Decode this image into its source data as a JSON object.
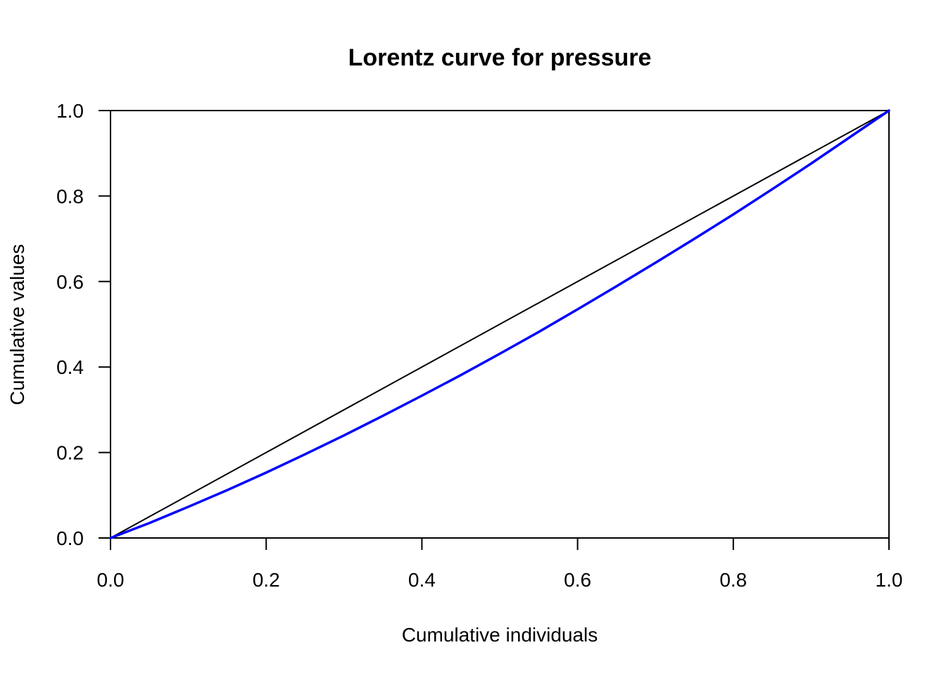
{
  "chart_data": {
    "type": "line",
    "title": "Lorentz curve for pressure",
    "xlabel": "Cumulative individuals",
    "ylabel": "Cumulative values",
    "xlim": [
      0,
      1
    ],
    "ylim": [
      0,
      1
    ],
    "xticks": [
      "0.0",
      "0.2",
      "0.4",
      "0.6",
      "0.8",
      "1.0"
    ],
    "yticks": [
      "0.0",
      "0.2",
      "0.4",
      "0.6",
      "0.8",
      "1.0"
    ],
    "grid": false,
    "legend": "none",
    "series": [
      {
        "role": "equality-line",
        "color": "#000000",
        "x": [
          0,
          1
        ],
        "y": [
          0,
          1
        ]
      },
      {
        "role": "lorenz-curve",
        "color": "#0000ff",
        "x": [
          0,
          0.05,
          0.1,
          0.15,
          0.2,
          0.25,
          0.3,
          0.35,
          0.4,
          0.45,
          0.5,
          0.55,
          0.6,
          0.65,
          0.7,
          0.75,
          0.8,
          0.85,
          0.9,
          0.95,
          1.0
        ],
        "y": [
          0,
          0.035,
          0.073,
          0.112,
          0.153,
          0.196,
          0.24,
          0.286,
          0.333,
          0.381,
          0.431,
          0.482,
          0.535,
          0.589,
          0.644,
          0.7,
          0.757,
          0.816,
          0.876,
          0.938,
          1.0
        ]
      }
    ]
  }
}
